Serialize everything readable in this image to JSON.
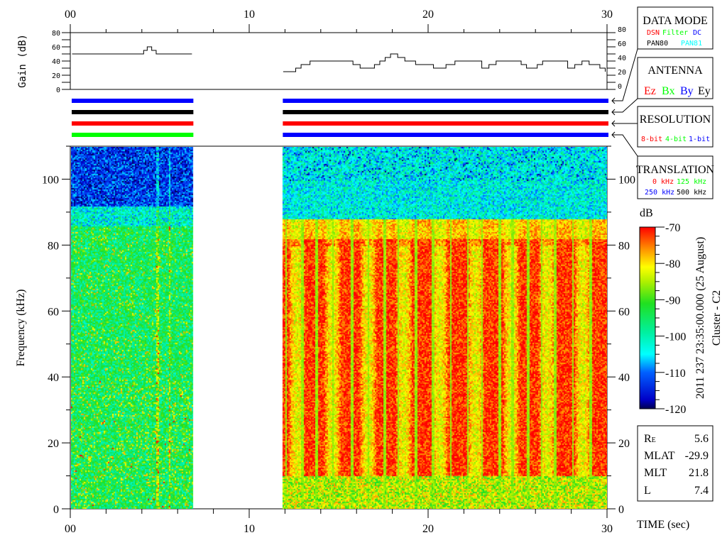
{
  "chart_data": [
    {
      "type": "line",
      "ylabel": "Gain (dB)",
      "xlim": [
        0,
        30
      ],
      "ylim": [
        0,
        80
      ],
      "x_ticks": [
        "00",
        "10",
        "20",
        "30"
      ],
      "y_ticks": [
        "0",
        "20",
        "40",
        "60",
        "80"
      ],
      "series": [
        {
          "segment": "first",
          "x": [
            0.1,
            3.7,
            4.1,
            4.3,
            4.55,
            4.8,
            6.8
          ],
          "y": [
            50,
            50,
            55,
            60,
            55,
            50,
            50
          ]
        },
        {
          "segment": "second",
          "x": [
            11.9,
            12.3,
            12.6,
            12.9,
            13.4,
            14.0,
            15.3,
            15.8,
            16.2,
            16.8,
            17.0,
            17.3,
            17.6,
            17.9,
            18.3,
            18.7,
            19.3,
            20.3,
            20.7,
            21.0,
            21.5,
            22.2,
            23.0,
            23.4,
            23.8,
            24.3,
            25.2,
            25.5,
            25.8,
            26.1,
            26.4,
            27.1,
            27.8,
            28.2,
            28.6,
            29.0,
            29.6,
            29.9
          ],
          "y": [
            25,
            25,
            30,
            35,
            40,
            40,
            40,
            35,
            30,
            30,
            35,
            40,
            45,
            50,
            45,
            40,
            35,
            30,
            30,
            35,
            40,
            40,
            30,
            35,
            40,
            40,
            35,
            30,
            30,
            35,
            40,
            40,
            30,
            35,
            40,
            35,
            30,
            25
          ]
        }
      ]
    },
    {
      "type": "heatmap",
      "xlabel": "TIME (sec)",
      "ylabel": "Frequency (kHz)",
      "xlim": [
        0,
        30
      ],
      "ylim": [
        0,
        110
      ],
      "x_ticks": [
        "00",
        "10",
        "20",
        "30"
      ],
      "y_ticks": [
        "0",
        "20",
        "40",
        "60",
        "80",
        "100"
      ],
      "data_segments_sec": [
        [
          0,
          6.8
        ],
        [
          11.8,
          30
        ]
      ],
      "colorbar": {
        "label": "dB",
        "range": [
          -120,
          -70
        ],
        "ticks": [
          "-70",
          "-80",
          "-90",
          "-100",
          "-110",
          "-120"
        ]
      }
    }
  ],
  "mode_bars": {
    "segment1": [
      "#0000ff",
      "#000000",
      "#ff0000",
      "#00ff00"
    ],
    "segment2": [
      "#0000ff",
      "#000000",
      "#ff0000",
      "#0000ff"
    ]
  },
  "legend": {
    "data_mode": {
      "title": "DATA MODE",
      "items": [
        {
          "label": "DSN",
          "color": "#ff0000"
        },
        {
          "label": "Filter",
          "color": "#00ff00"
        },
        {
          "label": "DC",
          "color": "#0000ff"
        },
        {
          "label": "PAN80",
          "color": "#000000"
        },
        {
          "label": "PAN81",
          "color": "#00ffff"
        }
      ]
    },
    "antenna": {
      "title": "ANTENNA",
      "items": [
        {
          "label": "Ez",
          "color": "#ff0000"
        },
        {
          "label": "Bx",
          "color": "#00ff00"
        },
        {
          "label": "By",
          "color": "#0000ff"
        },
        {
          "label": "Ey",
          "color": "#000000"
        }
      ]
    },
    "resolution": {
      "title": "RESOLUTION",
      "items": [
        {
          "label": "8-bit",
          "color": "#ff0000"
        },
        {
          "label": "4-bit",
          "color": "#00ff00"
        },
        {
          "label": "1-bit",
          "color": "#0000ff"
        }
      ]
    },
    "translation": {
      "title": "TRANSLATION",
      "items": [
        {
          "label": "0 kHz",
          "color": "#ff0000"
        },
        {
          "label": "125 kHz",
          "color": "#00ff00"
        },
        {
          "label": "250 kHz",
          "color": "#0000ff"
        },
        {
          "label": "500 kHz",
          "color": "#000000"
        }
      ]
    }
  },
  "timestamp": "2011 237 23:35:00.000 (25 August)",
  "spacecraft": "Cluster - C2",
  "orbit": [
    {
      "label": "R",
      "sub": "E",
      "value": "5.6"
    },
    {
      "label": "MLAT",
      "value": "-29.9"
    },
    {
      "label": "MLT",
      "value": "21.8"
    },
    {
      "label": "L",
      "value": "7.4"
    }
  ]
}
